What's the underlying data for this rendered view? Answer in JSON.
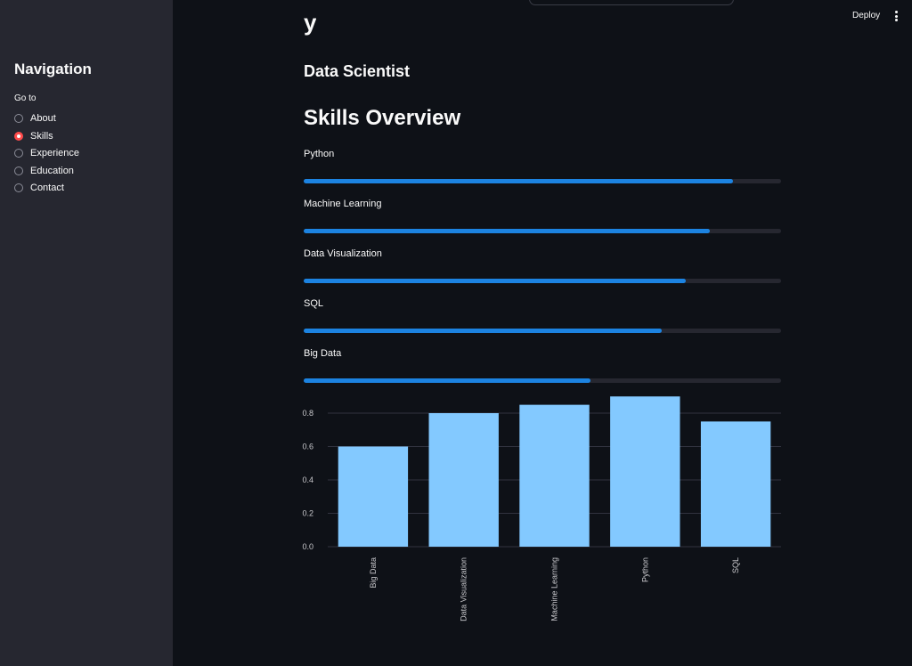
{
  "sidebar": {
    "title": "Navigation",
    "radio_label": "Go to",
    "options": [
      "About",
      "Skills",
      "Experience",
      "Education",
      "Contact"
    ],
    "selected": "Skills"
  },
  "header": {
    "deploy_label": "Deploy",
    "menu_icon": "vertical-ellipsis-icon"
  },
  "main": {
    "partial_heading": "y",
    "role": "Data Scientist",
    "section_title": "Skills Overview",
    "skills": [
      {
        "name": "Python",
        "level": 0.9
      },
      {
        "name": "Machine Learning",
        "level": 0.85
      },
      {
        "name": "Data Visualization",
        "level": 0.8
      },
      {
        "name": "SQL",
        "level": 0.75
      },
      {
        "name": "Big Data",
        "level": 0.6
      }
    ]
  },
  "colors": {
    "accent": "#ff4b4b",
    "progress": "#1c83e1",
    "bar": "#83c9ff",
    "background": "#0e1117",
    "sidebar": "#262730"
  },
  "chart_data": {
    "type": "bar",
    "categories": [
      "Big Data",
      "Data Visualization",
      "Machine Learning",
      "Python",
      "SQL"
    ],
    "values": [
      0.6,
      0.8,
      0.85,
      0.9,
      0.75
    ],
    "yticks": [
      "0.0",
      "0.2",
      "0.4",
      "0.6",
      "0.8"
    ],
    "ylim": [
      0,
      0.9
    ],
    "grid": true,
    "title": "",
    "xlabel": "",
    "ylabel": ""
  }
}
